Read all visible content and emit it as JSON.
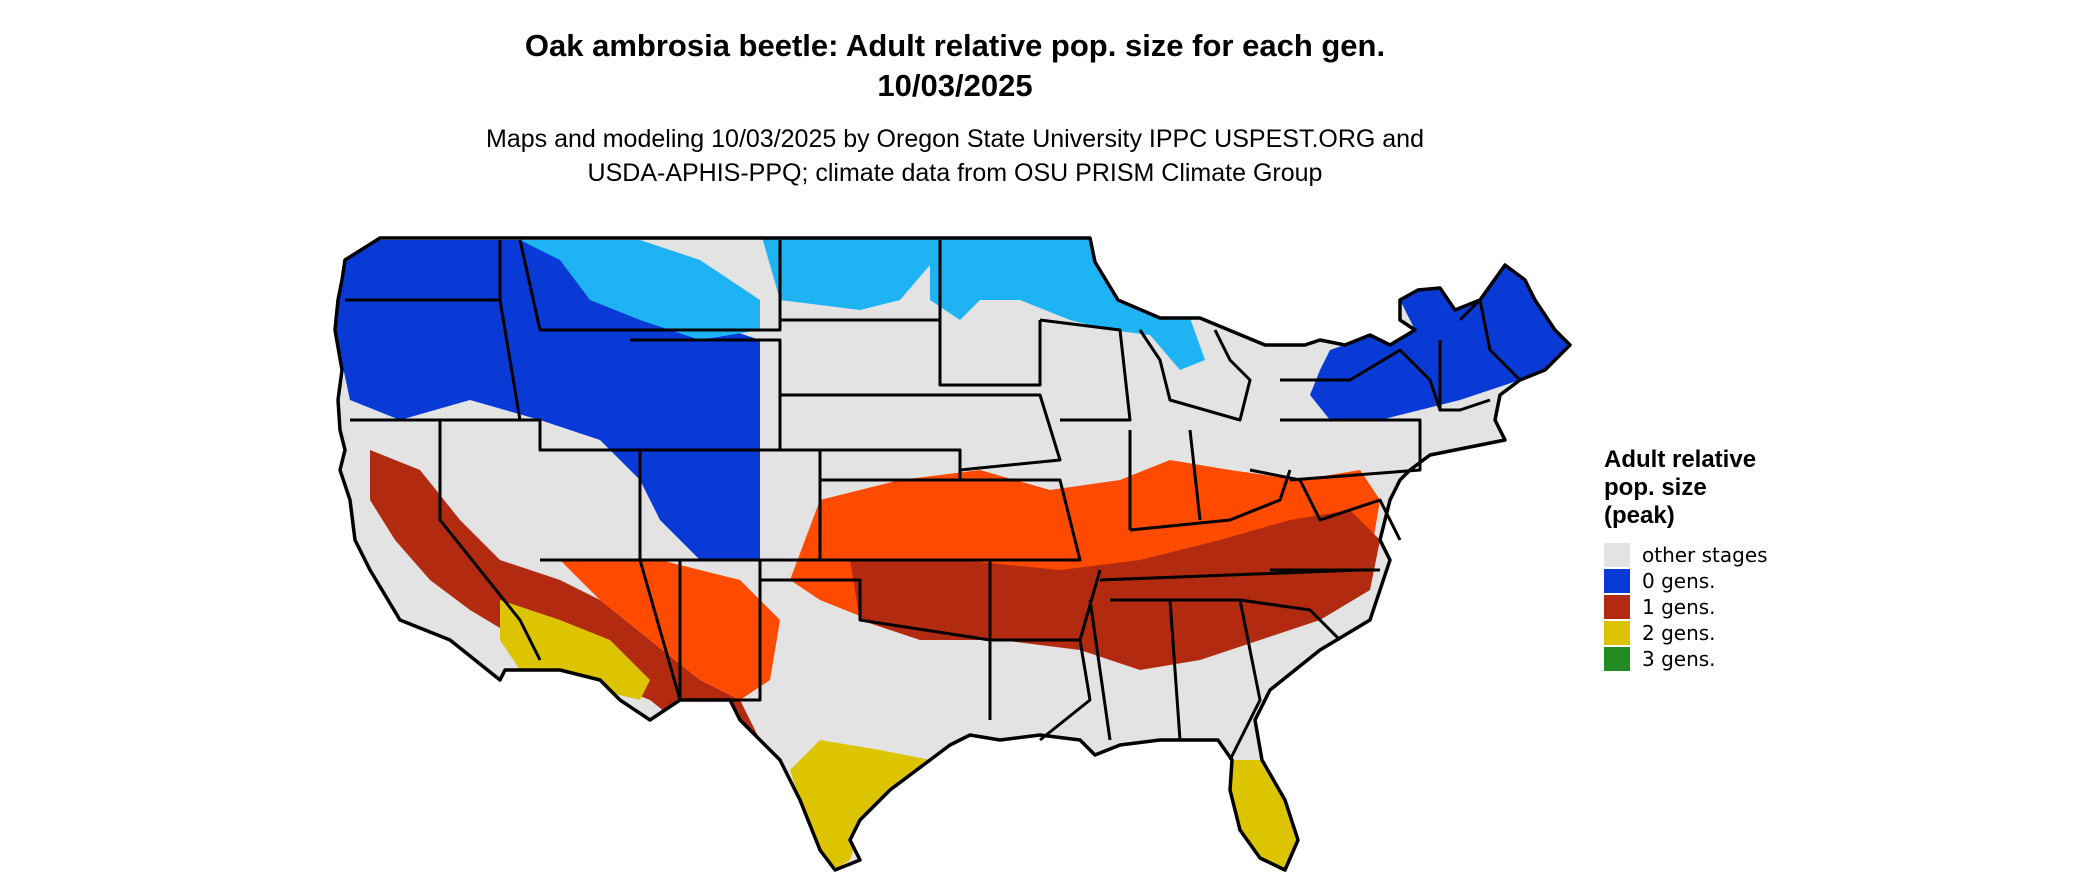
{
  "title_line1": "Oak ambrosia beetle: Adult relative pop. size for each gen.",
  "title_line2": "10/03/2025",
  "subtitle_line1": "Maps and modeling 10/03/2025 by Oregon State University IPPC USPEST.ORG and",
  "subtitle_line2": "USDA-APHIS-PPQ; climate data from OSU PRISM Climate Group",
  "legend": {
    "title_line1": "Adult relative",
    "title_line2": "pop. size",
    "title_line3": "(peak)",
    "items": [
      {
        "label": "other stages",
        "color": "#e3e3e3"
      },
      {
        "label": "0 gens.",
        "color": "#0a3ad6"
      },
      {
        "label": "1 gens.",
        "color": "#b22a10"
      },
      {
        "label": "2 gens.",
        "color": "#dcc400"
      },
      {
        "label": "3 gens.",
        "color": "#228b22"
      }
    ]
  },
  "map_colors": {
    "background_land": "#e3e3e3",
    "zero_dark": "#0a3ad6",
    "zero_light": "#1eb3f2",
    "one_bright": "#ff4a00",
    "one_dark": "#b22a10",
    "two": "#dcc400",
    "border": "#000000"
  }
}
